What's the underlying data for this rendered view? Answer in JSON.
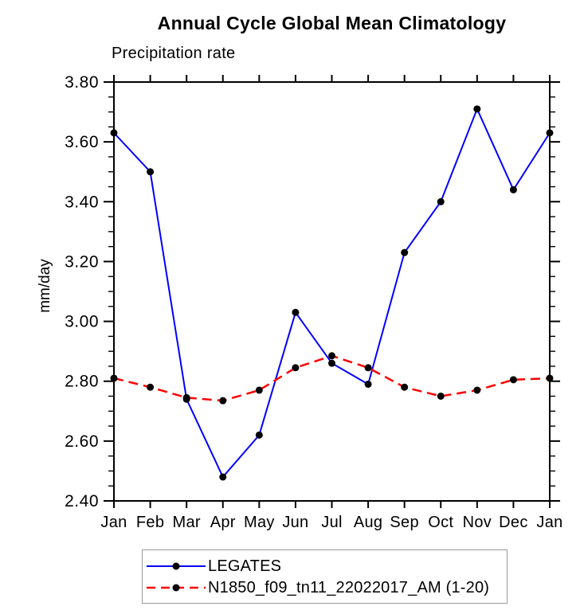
{
  "chart_data": {
    "type": "line",
    "title": "Annual Cycle Global Mean Climatology",
    "subtitle": "Precipitation rate",
    "ylabel": "mm/day",
    "categories": [
      "Jan",
      "Feb",
      "Mar",
      "Apr",
      "May",
      "Jun",
      "Jul",
      "Aug",
      "Sep",
      "Oct",
      "Nov",
      "Dec",
      "Jan"
    ],
    "ylim": [
      2.4,
      3.8
    ],
    "y_major_step": 0.2,
    "y_minor_step": 0.05,
    "y_tick_labels": [
      "3.80",
      "3.60",
      "3.40",
      "3.20",
      "3.00",
      "2.80",
      "2.60",
      "2.40"
    ],
    "grid": "off",
    "legend_position": "bottom",
    "marker_color": "#000000",
    "series": [
      {
        "name": "LEGATES",
        "color": "#0000ff",
        "line_style": "solid",
        "marker": "filled-circle",
        "values": [
          3.63,
          3.5,
          2.74,
          2.48,
          2.62,
          3.03,
          2.86,
          2.79,
          3.23,
          3.4,
          3.71,
          3.44,
          3.63
        ]
      },
      {
        "name": "N1850_f09_tn11_22022017_AM (1-20)",
        "color": "#ff0000",
        "line_style": "dashed",
        "marker": "filled-circle",
        "values": [
          2.81,
          2.78,
          2.745,
          2.735,
          2.77,
          2.845,
          2.885,
          2.845,
          2.78,
          2.75,
          2.77,
          2.805,
          2.81
        ]
      }
    ]
  }
}
